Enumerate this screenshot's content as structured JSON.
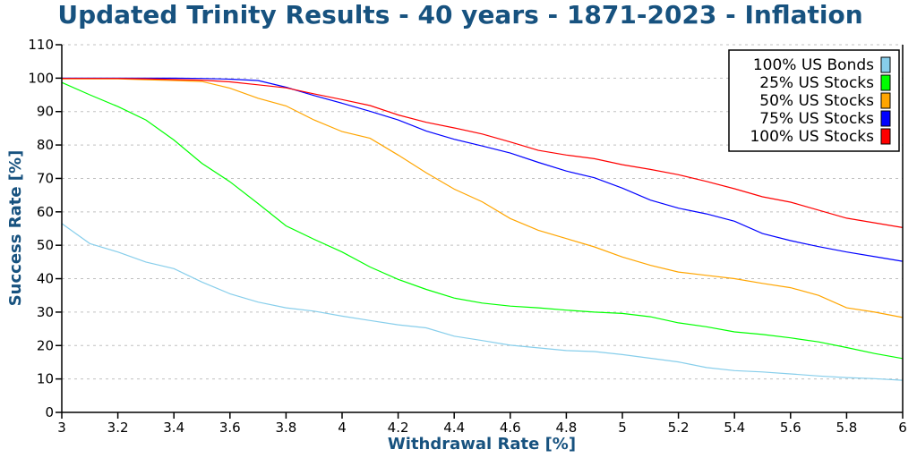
{
  "chart_data": {
    "type": "line",
    "title": "Updated Trinity Results - 40 years - 1871-2023 - Inflation",
    "xlabel": "Withdrawal Rate [%]",
    "ylabel": "Success Rate [%]",
    "xlim": [
      3,
      6
    ],
    "ylim": [
      0,
      110
    ],
    "grid": true,
    "legend_position": "top-right",
    "xticks": [
      3,
      3.2,
      3.4,
      3.6,
      3.8,
      4,
      4.2,
      4.4,
      4.6,
      4.8,
      5,
      5.2,
      5.4,
      5.6,
      5.8,
      6
    ],
    "xtick_labels": [
      "3",
      "3.2",
      "3.4",
      "3.6",
      "3.8",
      "4",
      "4.2",
      "4.4",
      "4.6",
      "4.8",
      "5",
      "5.2",
      "5.4",
      "5.6",
      "5.8",
      "6"
    ],
    "yticks": [
      0,
      10,
      20,
      30,
      40,
      50,
      60,
      70,
      80,
      90,
      100,
      110
    ],
    "ytick_labels": [
      "0",
      "10",
      "20",
      "30",
      "40",
      "50",
      "60",
      "70",
      "80",
      "90",
      "100",
      "110"
    ],
    "x": [
      3.0,
      3.1,
      3.2,
      3.3,
      3.4,
      3.5,
      3.6,
      3.7,
      3.8,
      3.9,
      4.0,
      4.1,
      4.2,
      4.3,
      4.4,
      4.5,
      4.6,
      4.7,
      4.8,
      4.9,
      5.0,
      5.1,
      5.2,
      5.3,
      5.4,
      5.5,
      5.6,
      5.7,
      5.8,
      5.9,
      6.0
    ],
    "series": [
      {
        "name": "100% US Bonds",
        "color": "#87ceeb",
        "values": [
          56.5,
          50.5,
          48,
          45,
          43,
          39,
          35.5,
          33,
          31.3,
          30.3,
          28.8,
          27.5,
          26.2,
          25.3,
          22.8,
          21.5,
          20.1,
          19.3,
          18.5,
          18.2,
          17.3,
          16.2,
          15.1,
          13.4,
          12.5,
          12.1,
          11.5,
          10.9,
          10.4,
          10.1,
          9.6
        ]
      },
      {
        "name": "25% US Stocks",
        "color": "#00ff00",
        "values": [
          98.7,
          95,
          91.5,
          87.5,
          81.5,
          74.5,
          69,
          62.5,
          55.8,
          51.8,
          48,
          43.5,
          39.8,
          36.8,
          34.2,
          32.7,
          31.8,
          31.3,
          30.6,
          30,
          29.6,
          28.6,
          26.8,
          25.6,
          24.1,
          23.3,
          22.3,
          21.1,
          19.4,
          17.6,
          16.1
        ]
      },
      {
        "name": "50% US Stocks",
        "color": "#ffa500",
        "values": [
          99.8,
          99.8,
          99.8,
          99.5,
          99.3,
          99,
          97,
          94,
          91.7,
          87.5,
          84,
          82,
          77,
          71.7,
          66.8,
          63,
          58,
          54.5,
          52,
          49.5,
          46.5,
          44,
          42,
          41,
          40,
          38.6,
          37.3,
          35,
          31.3,
          30,
          28.4
        ]
      },
      {
        "name": "75% US Stocks",
        "color": "#0000ff",
        "values": [
          100,
          100,
          100,
          100,
          100,
          99.9,
          99.7,
          99.3,
          97.3,
          94.8,
          92.5,
          90.1,
          87.5,
          84.2,
          81.7,
          79.7,
          77.6,
          74.8,
          72.2,
          70.2,
          67.1,
          63.5,
          61.1,
          59.4,
          57.2,
          53.5,
          51.4,
          49.6,
          48,
          46.6,
          45.2
        ]
      },
      {
        "name": "100% US Stocks",
        "color": "#ff0000",
        "values": [
          99.9,
          99.9,
          99.9,
          99.8,
          99.6,
          99.4,
          98.9,
          98,
          97.1,
          95.3,
          93.6,
          91.8,
          89,
          86.8,
          85.1,
          83.3,
          80.9,
          78.4,
          77,
          75.9,
          74.1,
          72.7,
          71.1,
          69.1,
          66.9,
          64.5,
          62.9,
          60.5,
          58.1,
          56.7,
          55.3
        ]
      }
    ]
  }
}
